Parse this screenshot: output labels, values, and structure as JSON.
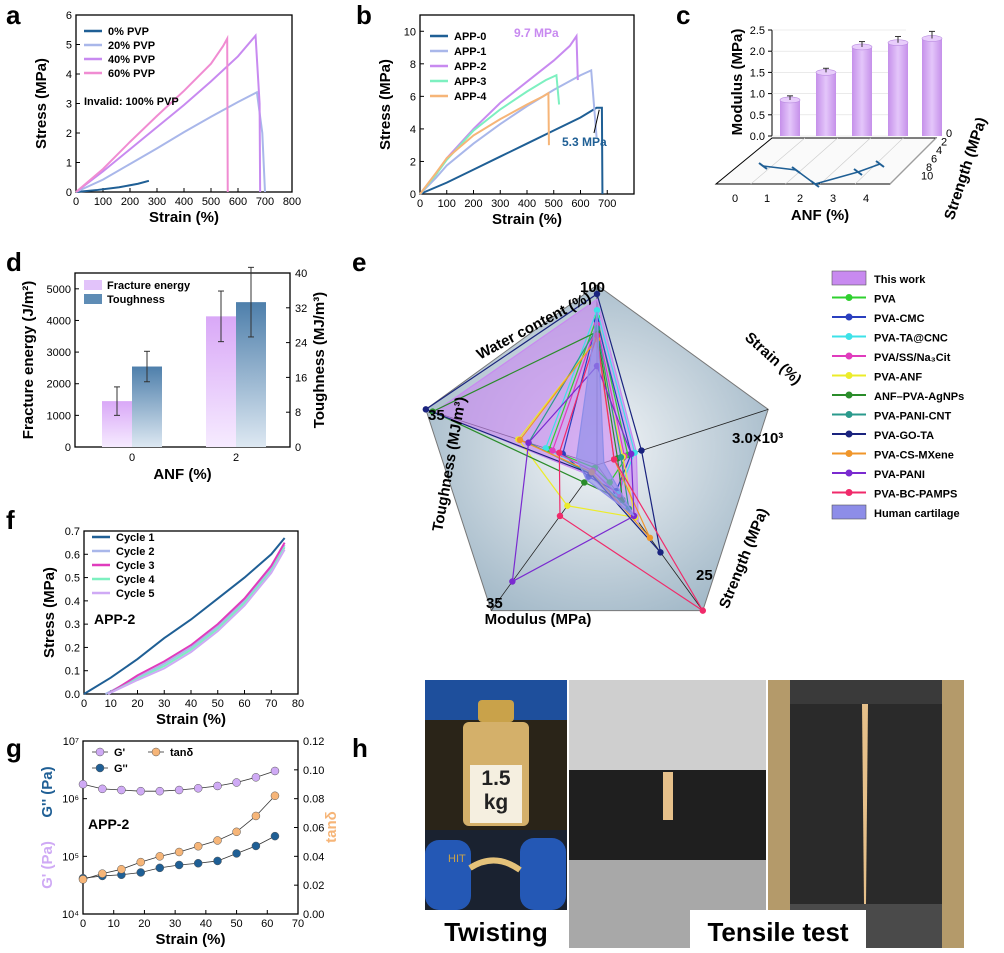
{
  "panel_labels": {
    "a": "a",
    "b": "b",
    "c": "c",
    "d": "d",
    "e": "e",
    "f": "f",
    "g": "g",
    "h": "h"
  },
  "colors": {
    "dark_blue": "#1f5f95",
    "light_blue": "#a9b7ea",
    "purple": "#c88af0",
    "pink": "#f08cd2",
    "mint": "#7df0c0",
    "orange": "#f6b578",
    "lilac": "#cfaaf5",
    "grid_blue": "#8fb3cf"
  },
  "chart_data": [
    {
      "id": "a",
      "type": "line",
      "xlabel": "Strain (%)",
      "ylabel": "Stress (MPa)",
      "xlim": [
        0,
        800
      ],
      "ylim": [
        0,
        6
      ],
      "xticks": [
        "0",
        "100",
        "200",
        "300",
        "400",
        "500",
        "600",
        "700",
        "800"
      ],
      "yticks": [
        "0",
        "1",
        "2",
        "3",
        "4",
        "5",
        "6"
      ],
      "invalid_note": "Invalid: 100% PVP",
      "series": [
        {
          "name": "0%  PVP",
          "color": "#1f5f95",
          "x": [
            0,
            80,
            160,
            230,
            270
          ],
          "y": [
            0,
            0.07,
            0.16,
            0.28,
            0.38
          ]
        },
        {
          "name": "20% PVP",
          "color": "#a9b7ea",
          "x": [
            0,
            100,
            200,
            300,
            400,
            500,
            600,
            670,
            690,
            700
          ],
          "y": [
            0,
            0.42,
            0.95,
            1.48,
            2.03,
            2.55,
            3.05,
            3.38,
            2.0,
            0
          ]
        },
        {
          "name": "40% PVP",
          "color": "#c88af0",
          "x": [
            0,
            100,
            200,
            300,
            400,
            500,
            600,
            665,
            680,
            682
          ],
          "y": [
            0,
            0.7,
            1.45,
            2.2,
            2.95,
            3.75,
            4.6,
            5.3,
            3.0,
            0
          ]
        },
        {
          "name": "60% PVP",
          "color": "#f08cd2",
          "x": [
            0,
            100,
            200,
            300,
            400,
            500,
            545,
            560,
            562
          ],
          "y": [
            0,
            0.78,
            1.7,
            2.58,
            3.43,
            4.35,
            4.95,
            5.2,
            0
          ]
        }
      ]
    },
    {
      "id": "b",
      "type": "line",
      "xlabel": "Strain (%)",
      "ylabel": "Stress (MPa)",
      "xlim": [
        0,
        800
      ],
      "ylim": [
        0,
        11
      ],
      "xticks": [
        "0",
        "100",
        "200",
        "300",
        "400",
        "500",
        "600",
        "700"
      ],
      "yticks": [
        "0",
        "2",
        "4",
        "6",
        "8",
        "10"
      ],
      "annotations": [
        "9.7 MPa",
        "5.3 MPa"
      ],
      "series": [
        {
          "name": "APP-0",
          "color": "#1f5f95",
          "x": [
            0,
            100,
            200,
            300,
            400,
            500,
            600,
            660,
            680,
            682
          ],
          "y": [
            0,
            0.7,
            1.5,
            2.3,
            3.1,
            3.9,
            4.7,
            5.3,
            5.3,
            0
          ]
        },
        {
          "name": "APP-1",
          "color": "#a9b7ea",
          "x": [
            0,
            60,
            100,
            200,
            300,
            400,
            500,
            600,
            640,
            660
          ],
          "y": [
            0,
            1.0,
            1.75,
            3.1,
            4.3,
            5.4,
            6.4,
            7.3,
            7.6,
            3.5
          ]
        },
        {
          "name": "APP-2",
          "color": "#c88af0",
          "x": [
            0,
            60,
            100,
            200,
            300,
            400,
            500,
            560,
            585,
            590
          ],
          "y": [
            0,
            1.2,
            2.2,
            4.0,
            5.6,
            6.9,
            8.2,
            9.1,
            9.7,
            7.0
          ]
        },
        {
          "name": "APP-3",
          "color": "#7df0c0",
          "x": [
            0,
            60,
            100,
            200,
            300,
            400,
            470,
            510,
            520
          ],
          "y": [
            0,
            1.2,
            2.1,
            3.9,
            5.2,
            6.3,
            7.0,
            7.3,
            5.5
          ]
        },
        {
          "name": "APP-4",
          "color": "#f6b578",
          "x": [
            0,
            60,
            100,
            200,
            300,
            400,
            460,
            480,
            482
          ],
          "y": [
            0,
            1.3,
            2.2,
            3.6,
            4.6,
            5.5,
            6.0,
            6.2,
            3.0
          ]
        }
      ]
    },
    {
      "id": "c",
      "type": "bar3d",
      "xlabel": "ANF (%)",
      "zlabel": "Modulus (MPa)",
      "ylabel": "Strength (MPa)",
      "categories": [
        "0",
        "1",
        "2",
        "3",
        "4"
      ],
      "modulus": [
        0.85,
        1.5,
        2.1,
        2.2,
        2.3
      ],
      "modulus_err": [
        0.05,
        0.05,
        0.08,
        0.1,
        0.12
      ],
      "strength": [
        6.0,
        5.0,
        2.0,
        5.3,
        9.7
      ],
      "zticks": [
        "0.0",
        "0.5",
        "1.0",
        "1.5",
        "2.0",
        "2.5"
      ],
      "yticks": [
        "0",
        "2",
        "4",
        "6",
        "8",
        "10"
      ]
    },
    {
      "id": "d",
      "type": "bar",
      "xlabel": "ANF (%)",
      "ylabel": "Fracture energy (J/m²)",
      "y2label": "Toughness (MJ/m³)",
      "categories": [
        "0",
        "2"
      ],
      "series": [
        {
          "name": "Fracture energy",
          "values": [
            1450,
            4130
          ],
          "errors": [
            450,
            800
          ]
        },
        {
          "name": "Toughness",
          "values": [
            18.5,
            33.3
          ],
          "errors": [
            3.5,
            8
          ]
        }
      ],
      "ylim": [
        0,
        5500
      ],
      "y2lim": [
        0,
        40
      ],
      "yticks": [
        "0",
        "1000",
        "2000",
        "3000",
        "4000",
        "5000"
      ],
      "y2ticks": [
        "0",
        "8",
        "16",
        "24",
        "32",
        "40"
      ]
    },
    {
      "id": "e",
      "type": "radar",
      "axes": [
        {
          "label": "Water content (%)",
          "max": "100"
        },
        {
          "label": "Strain (%)",
          "max": "3.0×10³"
        },
        {
          "label": "Strength (MPa)",
          "max": "25"
        },
        {
          "label": "Modulus (MPa)",
          "max": "35"
        },
        {
          "label": "Toughness (MJ/m³)",
          "max": "35"
        }
      ],
      "series": [
        {
          "name": "This work",
          "color": "#c88af0",
          "values": [
            0.92,
            0.23,
            0.39,
            0.07,
            0.95
          ]
        },
        {
          "name": "PVA",
          "color": "#2fd02f",
          "values": [
            0.82,
            0.18,
            0.12,
            0.02,
            0.28
          ]
        },
        {
          "name": "PVA-CMC",
          "color": "#2a3fbf",
          "values": [
            0.8,
            0.2,
            0.18,
            0.08,
            0.2
          ]
        },
        {
          "name": "PVA-TA@CNC",
          "color": "#3de2e8",
          "values": [
            0.86,
            0.22,
            0.2,
            0.04,
            0.3
          ]
        },
        {
          "name": "PVA/SS/Na₃Cit",
          "color": "#e03cbd",
          "values": [
            0.78,
            0.16,
            0.22,
            0.04,
            0.26
          ]
        },
        {
          "name": "PVA-ANF",
          "color": "#ecec2a",
          "values": [
            0.7,
            0.15,
            0.36,
            0.28,
            0.46
          ]
        },
        {
          "name": "ANF–PVA-AgNPs",
          "color": "#2a8c2a",
          "values": [
            0.74,
            0.12,
            0.24,
            0.12,
            0.96
          ]
        },
        {
          "name": "PVA-PANI-CNT",
          "color": "#2a9a8c",
          "values": [
            0.76,
            0.14,
            0.3,
            0.06,
            0.4
          ]
        },
        {
          "name": "PVA-GO-TA",
          "color": "#1a237e",
          "values": [
            0.95,
            0.26,
            0.6,
            0.06,
            1.0
          ]
        },
        {
          "name": "PVA-CS-MXene",
          "color": "#f0962a",
          "values": [
            0.7,
            0.1,
            0.5,
            0.05,
            0.45
          ]
        },
        {
          "name": "PVA-PANI",
          "color": "#7a2ad0",
          "values": [
            0.55,
            0.2,
            0.35,
            0.8,
            0.4
          ]
        },
        {
          "name": "PVA-BC-PAMPS",
          "color": "#f02a6a",
          "values": [
            0.72,
            0.1,
            1.0,
            0.35,
            0.22
          ]
        },
        {
          "name": "Human cartilage",
          "color": "#8d8de8",
          "values": [
            0.85,
            0.04,
            0.35,
            0.1,
            0.12
          ]
        }
      ]
    },
    {
      "id": "f",
      "type": "line",
      "xlabel": "Strain (%)",
      "ylabel": "Stress (MPa)",
      "xlim": [
        0,
        80
      ],
      "ylim": [
        0,
        0.7
      ],
      "xticks": [
        "0",
        "10",
        "20",
        "30",
        "40",
        "50",
        "60",
        "70",
        "80"
      ],
      "yticks": [
        "0.0",
        "0.1",
        "0.2",
        "0.3",
        "0.4",
        "0.5",
        "0.6",
        "0.7"
      ],
      "sample": "APP-2",
      "series": [
        {
          "name": "Cycle 1",
          "color": "#1f5f95",
          "x": [
            0,
            10,
            20,
            30,
            40,
            50,
            60,
            70,
            75
          ],
          "y": [
            0,
            0.07,
            0.15,
            0.24,
            0.32,
            0.41,
            0.5,
            0.6,
            0.67
          ]
        },
        {
          "name": "Cycle 2",
          "color": "#a9b7ea",
          "x": [
            8,
            20,
            30,
            40,
            50,
            60,
            70,
            75
          ],
          "y": [
            0,
            0.07,
            0.13,
            0.2,
            0.29,
            0.4,
            0.54,
            0.64
          ]
        },
        {
          "name": "Cycle 3",
          "color": "#e03cbd",
          "x": [
            9,
            20,
            30,
            40,
            50,
            60,
            70,
            75
          ],
          "y": [
            0,
            0.08,
            0.14,
            0.21,
            0.3,
            0.41,
            0.55,
            0.65
          ]
        },
        {
          "name": "Cycle 4",
          "color": "#7df0c0",
          "x": [
            9,
            20,
            30,
            40,
            50,
            60,
            70,
            75
          ],
          "y": [
            0,
            0.065,
            0.12,
            0.19,
            0.28,
            0.39,
            0.53,
            0.63
          ]
        },
        {
          "name": "Cycle 5",
          "color": "#cfaaf5",
          "x": [
            9,
            20,
            30,
            40,
            50,
            60,
            70,
            75
          ],
          "y": [
            0,
            0.06,
            0.11,
            0.18,
            0.27,
            0.38,
            0.52,
            0.62
          ]
        }
      ]
    },
    {
      "id": "g",
      "type": "scatter",
      "xlabel": "Strain (%)",
      "ylabel1": "G' (Pa)",
      "ylabel2": "G'' (Pa)",
      "y2label": "tanδ",
      "xlim": [
        0,
        70
      ],
      "ylog": [
        4,
        7
      ],
      "y2lim": [
        0,
        0.12
      ],
      "sample": "APP-2",
      "xticks": [
        "0",
        "10",
        "20",
        "30",
        "40",
        "50",
        "60",
        "70"
      ],
      "yticks": [
        "10⁴",
        "10⁵",
        "10⁶",
        "10⁷"
      ],
      "y2ticks": [
        "0.00",
        "0.02",
        "0.04",
        "0.06",
        "0.08",
        "0.10",
        "0.12"
      ],
      "x": [
        0,
        6.3,
        12.5,
        18.8,
        25,
        31.3,
        37.5,
        43.8,
        50,
        56.3,
        62.5
      ],
      "series": [
        {
          "name": "G'",
          "color": "#cfaaf5",
          "log_values": [
            6.25,
            6.17,
            6.15,
            6.13,
            6.13,
            6.15,
            6.18,
            6.22,
            6.28,
            6.37,
            6.48
          ]
        },
        {
          "name": "G''",
          "color": "#1f5f95",
          "log_values": [
            4.62,
            4.66,
            4.68,
            4.72,
            4.8,
            4.85,
            4.88,
            4.92,
            5.05,
            5.18,
            5.35
          ]
        },
        {
          "name": "tanδ",
          "color": "#f6b578",
          "values": [
            0.024,
            0.028,
            0.031,
            0.036,
            0.04,
            0.043,
            0.047,
            0.051,
            0.057,
            0.068,
            0.082
          ]
        }
      ]
    }
  ],
  "photos": {
    "weight": "1.5\nkg",
    "weight_l1": "1.5",
    "weight_l2": "kg",
    "twist_caption": "Twisting",
    "tensile_caption": "Tensile test",
    "tape_text": "HIT"
  }
}
